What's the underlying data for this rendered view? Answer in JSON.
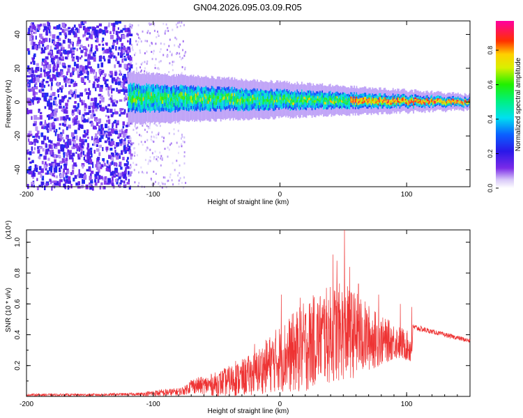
{
  "title": "GN04.2026.095.03.09.R05",
  "chart_data": [
    {
      "type": "heatmap",
      "title": "GN04.2026.095.03.09.R05",
      "xlabel": "Height of straight line (km)",
      "ylabel": "Frequency (Hz)",
      "xlim": [
        -200,
        150
      ],
      "ylim": [
        -50,
        48
      ],
      "xticks": [
        "-200",
        "-100",
        "0",
        "100"
      ],
      "yticks": [
        "-40",
        "-20",
        "0",
        "20",
        "40"
      ],
      "colorbar": {
        "label": "Normalized spectral amplitude",
        "range": [
          0,
          0.97
        ],
        "ticks": [
          "0.0",
          "0.2",
          "0.4",
          "0.6",
          "0.8"
        ],
        "colormap": "rainbow (purple-blue-cyan-green-yellow-red-magenta)"
      },
      "features": {
        "noise_region_km": [
          -200,
          -120
        ],
        "signal_band_center_hz": 0,
        "signal_onset_km": -120,
        "signal_band_halfwidth_hz_start": 7,
        "signal_band_halfwidth_hz_end": 2,
        "peak_amplitude_region_km": [
          60,
          150
        ]
      }
    },
    {
      "type": "line",
      "title": "",
      "xlabel": "Height of straight line (km)",
      "ylabel": "SNR (10 * v/v)",
      "yscale_label": "(x10⁴)",
      "xlim": [
        -200,
        150
      ],
      "ylim": [
        0,
        1.08
      ],
      "xticks": [
        "-200",
        "-100",
        "0",
        "100"
      ],
      "yticks": [
        "0.2",
        "0.4",
        "0.6",
        "0.8",
        "1.0"
      ],
      "color": "#ee3333",
      "series": [
        {
          "name": "SNR",
          "x": [
            -200,
            -150,
            -110,
            -100,
            -90,
            -80,
            -75,
            -70,
            -60,
            -50,
            -40,
            -30,
            -20,
            -10,
            0,
            10,
            20,
            30,
            40,
            50,
            60,
            70,
            80,
            90,
            100,
            104,
            105,
            110,
            120,
            130,
            140,
            150
          ],
          "base": [
            0.01,
            0.01,
            0.015,
            0.02,
            0.025,
            0.03,
            0.04,
            0.07,
            0.07,
            0.08,
            0.1,
            0.12,
            0.15,
            0.2,
            0.25,
            0.28,
            0.32,
            0.38,
            0.4,
            0.42,
            0.4,
            0.38,
            0.36,
            0.36,
            0.33,
            0.3,
            0.45,
            0.44,
            0.42,
            0.4,
            0.38,
            0.36
          ],
          "amp": [
            0.008,
            0.008,
            0.01,
            0.02,
            0.025,
            0.025,
            0.03,
            0.05,
            0.06,
            0.08,
            0.1,
            0.12,
            0.14,
            0.18,
            0.22,
            0.26,
            0.3,
            0.3,
            0.32,
            0.32,
            0.28,
            0.22,
            0.16,
            0.12,
            0.1,
            0.1,
            0.02,
            0.02,
            0.015,
            0.015,
            0.015,
            0.015
          ],
          "spikes": [
            [
              -35,
              0.23
            ],
            [
              -20,
              0.34
            ],
            [
              1,
              0.66
            ],
            [
              16,
              0.64
            ],
            [
              25,
              0.58
            ],
            [
              35,
              0.63
            ],
            [
              42,
              0.92
            ],
            [
              45,
              0.88
            ],
            [
              51,
              1.08
            ],
            [
              55,
              0.84
            ],
            [
              62,
              0.73
            ],
            [
              78,
              0.66
            ],
            [
              95,
              0.6
            ],
            [
              104,
              0.58
            ]
          ]
        }
      ]
    }
  ]
}
